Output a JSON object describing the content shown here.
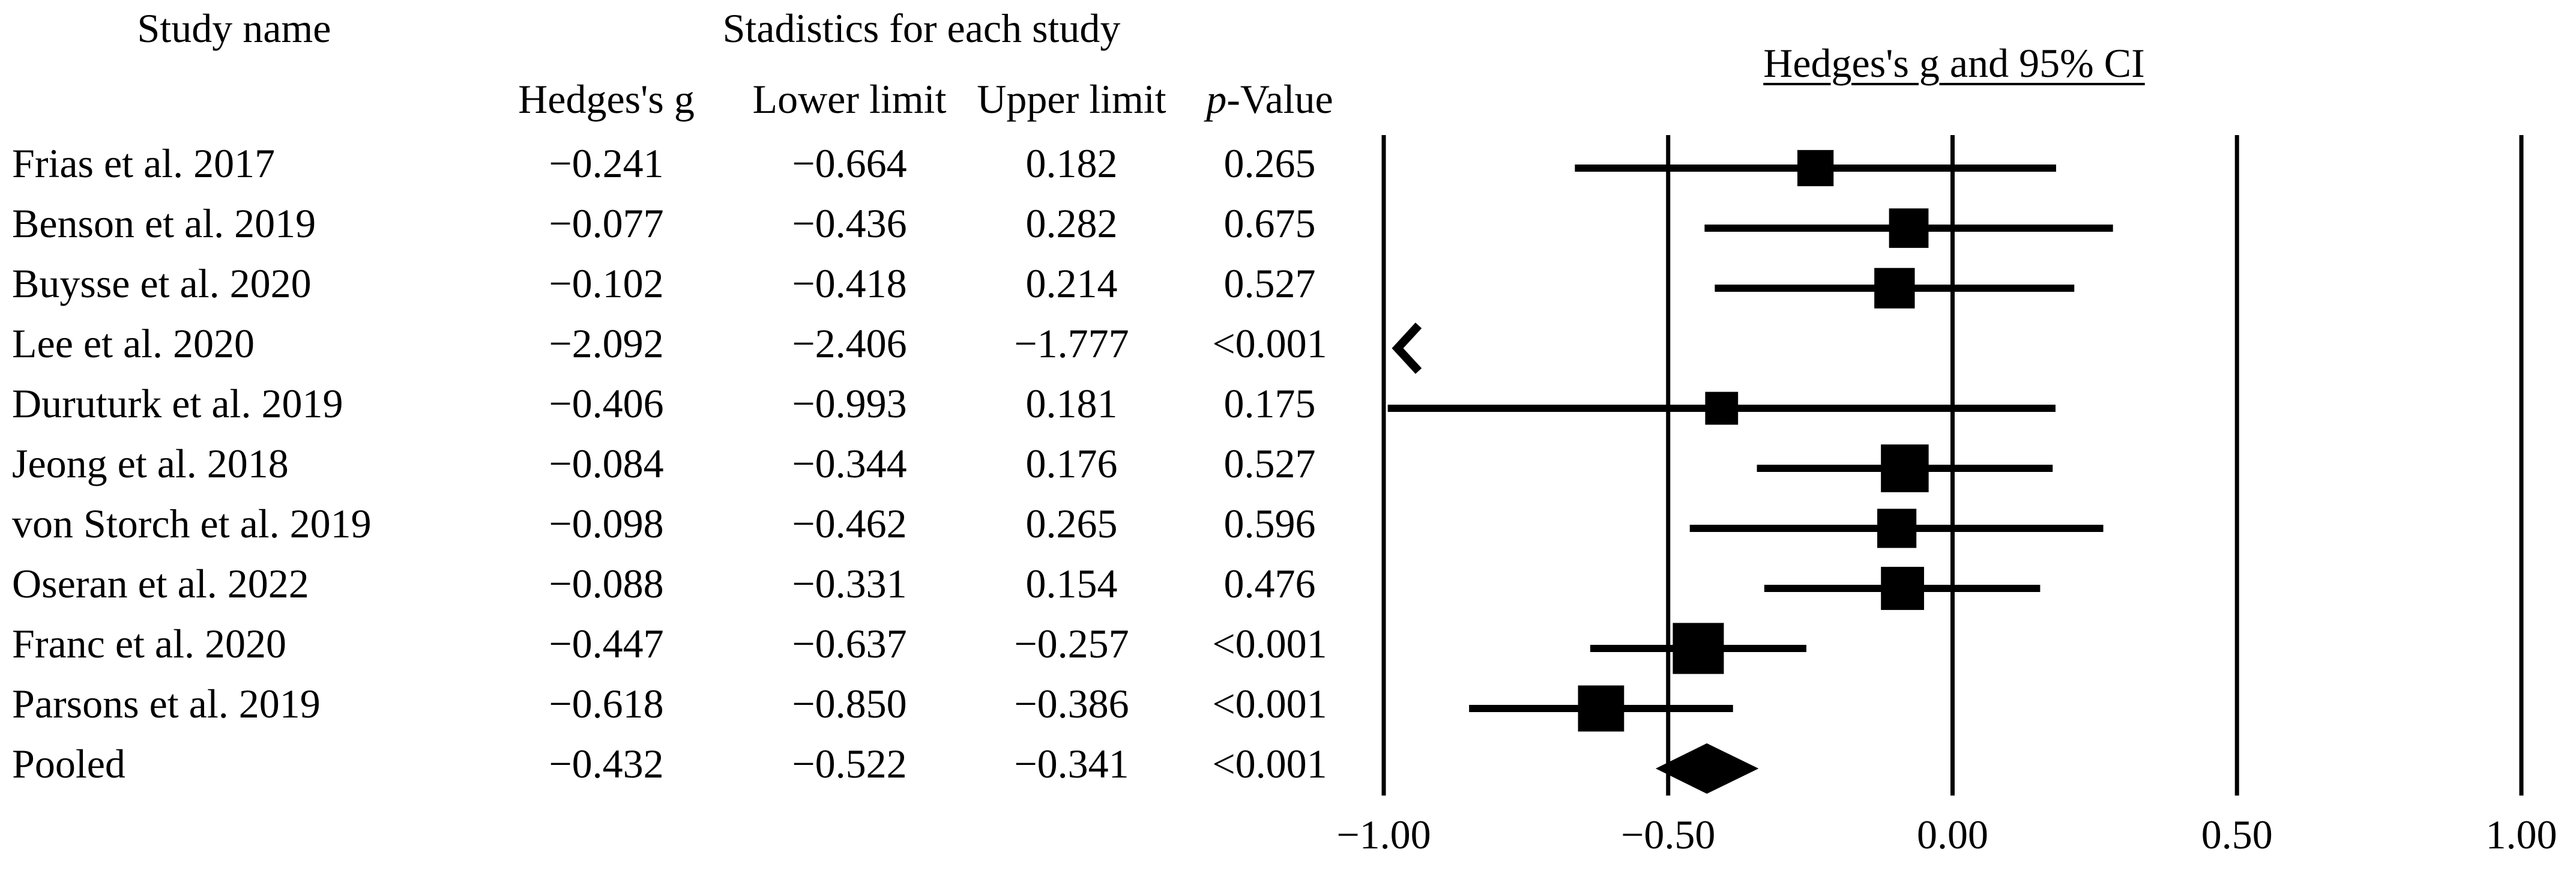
{
  "chart_data": {
    "type": "forest",
    "title": "Hedges's g and 95% CI",
    "group_header": "Stadistics for each study",
    "columns": {
      "study": "Study name",
      "g": "Hedges's g",
      "lower": "Lower limit",
      "upper": "Upper limit",
      "p_italic": "p",
      "p_rest": "-Value"
    },
    "xlim": [
      -1.0,
      1.0
    ],
    "ticks": [
      -1.0,
      -0.5,
      0.0,
      0.5,
      1.0
    ],
    "tick_labels": [
      "−1.00",
      "−0.50",
      "0.00",
      "0.50",
      "1.00"
    ],
    "studies": [
      {
        "name": "Frias et al. 2017",
        "g": -0.241,
        "lower": -0.664,
        "upper": 0.182,
        "g_text": "−0.241",
        "lower_text": "−0.664",
        "upper_text": "0.182",
        "p_text": "0.265",
        "weight": 0.55
      },
      {
        "name": "Benson et al. 2019",
        "g": -0.077,
        "lower": -0.436,
        "upper": 0.282,
        "g_text": "−0.077",
        "lower_text": "−0.436",
        "upper_text": "0.282",
        "p_text": "0.675",
        "weight": 0.65
      },
      {
        "name": "Buysse et al. 2020",
        "g": -0.102,
        "lower": -0.418,
        "upper": 0.214,
        "g_text": "−0.102",
        "lower_text": "−0.418",
        "upper_text": "0.214",
        "p_text": "0.527",
        "weight": 0.68
      },
      {
        "name": "Lee et al. 2020",
        "g": -2.092,
        "lower": -2.406,
        "upper": -1.777,
        "g_text": "−2.092",
        "lower_text": "−2.406",
        "upper_text": "−1.777",
        "p_text": "<0.001",
        "weight": 0.7
      },
      {
        "name": "Duruturk et al. 2019",
        "g": -0.406,
        "lower": -0.993,
        "upper": 0.181,
        "g_text": "−0.406",
        "lower_text": "−0.993",
        "upper_text": "0.181",
        "p_text": "0.175",
        "weight": 0.45
      },
      {
        "name": "Jeong et al. 2018",
        "g": -0.084,
        "lower": -0.344,
        "upper": 0.176,
        "g_text": "−0.084",
        "lower_text": "−0.344",
        "upper_text": "0.176",
        "p_text": "0.527",
        "weight": 0.9
      },
      {
        "name": "von Storch et al. 2019",
        "g": -0.098,
        "lower": -0.462,
        "upper": 0.265,
        "g_text": "−0.098",
        "lower_text": "−0.462",
        "upper_text": "0.265",
        "p_text": "0.596",
        "weight": 0.64
      },
      {
        "name": "Oseran et al. 2022",
        "g": -0.088,
        "lower": -0.331,
        "upper": 0.154,
        "g_text": "−0.088",
        "lower_text": "−0.331",
        "upper_text": "0.154",
        "p_text": "0.476",
        "weight": 0.76
      },
      {
        "name": "Franc et al. 2020",
        "g": -0.447,
        "lower": -0.637,
        "upper": -0.257,
        "g_text": "−0.447",
        "lower_text": "−0.637",
        "upper_text": "−0.257",
        "p_text": "<0.001",
        "weight": 1.0
      },
      {
        "name": "Parsons et al. 2019",
        "g": -0.618,
        "lower": -0.85,
        "upper": -0.386,
        "g_text": "−0.618",
        "lower_text": "−0.850",
        "upper_text": "−0.386",
        "p_text": "<0.001",
        "weight": 0.85
      }
    ],
    "pooled": {
      "name": "Pooled",
      "g": -0.432,
      "lower": -0.522,
      "upper": -0.341,
      "g_text": "−0.432",
      "lower_text": "−0.522",
      "upper_text": "−0.341",
      "p_text": "<0.001"
    }
  }
}
